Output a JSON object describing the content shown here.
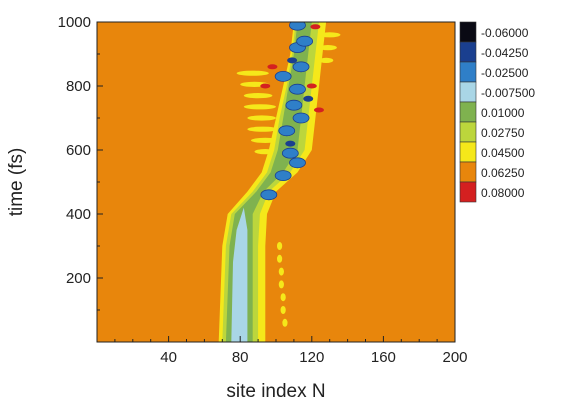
{
  "chart_data": {
    "type": "heatmap",
    "xlabel": "site index N",
    "ylabel": "time (fs)",
    "xlim": [
      0,
      200
    ],
    "ylim": [
      0,
      1000
    ],
    "x_ticks": [
      {
        "value": 40,
        "label": "40"
      },
      {
        "value": 80,
        "label": "80"
      },
      {
        "value": 120,
        "label": "120"
      },
      {
        "value": 160,
        "label": "160"
      },
      {
        "value": 200,
        "label": "200"
      }
    ],
    "y_ticks": [
      {
        "value": 200,
        "label": "200"
      },
      {
        "value": 400,
        "label": "400"
      },
      {
        "value": 600,
        "label": "600"
      },
      {
        "value": 800,
        "label": "800"
      },
      {
        "value": 1000,
        "label": "1000"
      }
    ],
    "background_level": 0.06,
    "background_color": "#e8860c",
    "colorbar": {
      "levels": [
        {
          "label": "-0.06000",
          "color": "#0a0a14"
        },
        {
          "label": "-0.04250",
          "color": "#1a3f8f"
        },
        {
          "label": "-0.02500",
          "color": "#2f7fc8"
        },
        {
          "label": "-0.007500",
          "color": "#a9d6e6"
        },
        {
          "label": "0.01000",
          "color": "#7fb24f"
        },
        {
          "label": "0.02750",
          "color": "#bcd63c"
        },
        {
          "label": "0.04500",
          "color": "#f5e81a"
        },
        {
          "label": "0.06250",
          "color": "#e8860c"
        },
        {
          "label": "0.08000",
          "color": "#d42020"
        }
      ]
    },
    "regions": [
      {
        "band": "outer",
        "level": 0.045,
        "points": [
          [
            68,
            0
          ],
          [
            70,
            300
          ],
          [
            73,
            400
          ],
          [
            84,
            470
          ],
          [
            92,
            530
          ],
          [
            96,
            600
          ],
          [
            100,
            700
          ],
          [
            104,
            800
          ],
          [
            108,
            900
          ],
          [
            110,
            1000
          ],
          [
            128,
            1000
          ],
          [
            126,
            900
          ],
          [
            124,
            800
          ],
          [
            122,
            700
          ],
          [
            120,
            600
          ],
          [
            112,
            530
          ],
          [
            100,
            470
          ],
          [
            95,
            400
          ],
          [
            94,
            300
          ],
          [
            94,
            0
          ]
        ]
      },
      {
        "band": "middle",
        "level": 0.0275,
        "points": [
          [
            70,
            0
          ],
          [
            72,
            300
          ],
          [
            75,
            400
          ],
          [
            87,
            470
          ],
          [
            95,
            530
          ],
          [
            99,
            600
          ],
          [
            102,
            700
          ],
          [
            106,
            800
          ],
          [
            109,
            900
          ],
          [
            111,
            1000
          ],
          [
            124,
            1000
          ],
          [
            122,
            900
          ],
          [
            120,
            800
          ],
          [
            118,
            700
          ],
          [
            116,
            600
          ],
          [
            108,
            530
          ],
          [
            96,
            470
          ],
          [
            91,
            400
          ],
          [
            90,
            300
          ],
          [
            90,
            0
          ]
        ]
      },
      {
        "band": "inner",
        "level": 0.01,
        "points": [
          [
            72,
            0
          ],
          [
            74,
            300
          ],
          [
            77,
            400
          ],
          [
            89,
            470
          ],
          [
            97,
            530
          ],
          [
            101,
            600
          ],
          [
            104,
            700
          ],
          [
            107,
            800
          ],
          [
            110,
            900
          ],
          [
            112,
            1000
          ],
          [
            120,
            1000
          ],
          [
            118,
            900
          ],
          [
            116,
            800
          ],
          [
            114,
            700
          ],
          [
            112,
            600
          ],
          [
            104,
            530
          ],
          [
            93,
            470
          ],
          [
            87,
            400
          ],
          [
            87,
            300
          ],
          [
            87,
            0
          ]
        ]
      },
      {
        "band": "core",
        "level": -0.0075,
        "points": [
          [
            75,
            0
          ],
          [
            76,
            250
          ],
          [
            78,
            350
          ],
          [
            82,
            420
          ],
          [
            84,
            350
          ],
          [
            84,
            250
          ],
          [
            84,
            0
          ]
        ]
      }
    ],
    "spots": [
      {
        "x": 96,
        "y": 460,
        "level": -0.025
      },
      {
        "x": 104,
        "y": 520,
        "level": -0.025
      },
      {
        "x": 108,
        "y": 590,
        "level": -0.025
      },
      {
        "x": 112,
        "y": 560,
        "level": -0.025
      },
      {
        "x": 106,
        "y": 660,
        "level": -0.025
      },
      {
        "x": 114,
        "y": 700,
        "level": -0.025
      },
      {
        "x": 110,
        "y": 740,
        "level": -0.025
      },
      {
        "x": 112,
        "y": 790,
        "level": -0.025
      },
      {
        "x": 104,
        "y": 830,
        "level": -0.025
      },
      {
        "x": 114,
        "y": 860,
        "level": -0.025
      },
      {
        "x": 112,
        "y": 920,
        "level": -0.025
      },
      {
        "x": 116,
        "y": 940,
        "level": -0.025
      },
      {
        "x": 112,
        "y": 990,
        "level": -0.025
      },
      {
        "x": 109,
        "y": 880,
        "level": -0.0425
      },
      {
        "x": 118,
        "y": 760,
        "level": -0.0425
      },
      {
        "x": 108,
        "y": 620,
        "level": -0.0425
      },
      {
        "x": 122,
        "y": 985,
        "level": 0.08
      },
      {
        "x": 120,
        "y": 800,
        "level": 0.08
      },
      {
        "x": 124,
        "y": 725,
        "level": 0.08
      },
      {
        "x": 98,
        "y": 860,
        "level": 0.08
      },
      {
        "x": 94,
        "y": 800,
        "level": 0.08
      }
    ],
    "stripes": [
      {
        "y": 840,
        "x_start": 78,
        "x_end": 96
      },
      {
        "y": 805,
        "x_start": 80,
        "x_end": 96
      },
      {
        "y": 770,
        "x_start": 82,
        "x_end": 98
      },
      {
        "y": 735,
        "x_start": 82,
        "x_end": 100
      },
      {
        "y": 700,
        "x_start": 84,
        "x_end": 100
      },
      {
        "y": 665,
        "x_start": 84,
        "x_end": 101
      },
      {
        "y": 630,
        "x_start": 86,
        "x_end": 102
      },
      {
        "y": 595,
        "x_start": 88,
        "x_end": 100
      },
      {
        "y": 960,
        "x_start": 124,
        "x_end": 136
      },
      {
        "y": 920,
        "x_start": 124,
        "x_end": 134
      },
      {
        "y": 880,
        "x_start": 124,
        "x_end": 132
      }
    ],
    "dots": [
      {
        "x": 102,
        "y": 300
      },
      {
        "x": 102,
        "y": 260
      },
      {
        "x": 103,
        "y": 220
      },
      {
        "x": 103,
        "y": 180
      },
      {
        "x": 104,
        "y": 140
      },
      {
        "x": 104,
        "y": 100
      },
      {
        "x": 105,
        "y": 60
      }
    ]
  }
}
